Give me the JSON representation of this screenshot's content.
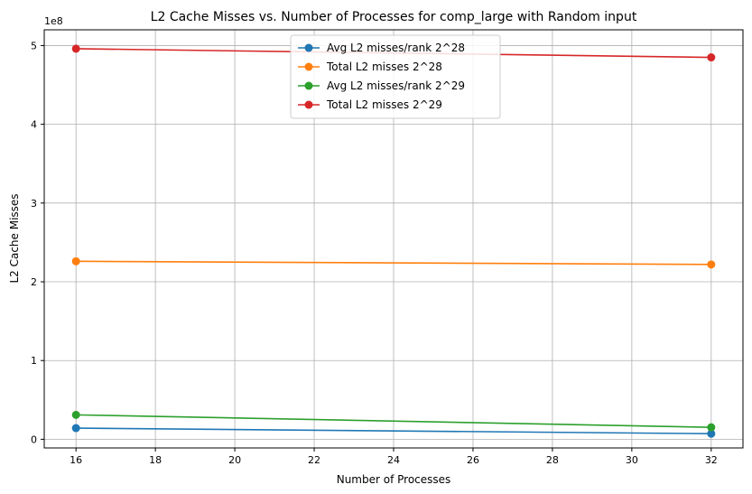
{
  "chart_data": {
    "type": "line",
    "title": "L2 Cache Misses vs. Number of Processes for comp_large with Random input",
    "xlabel": "Number of Processes",
    "ylabel": "L2 Cache Misses",
    "y_offset_label": "1e8",
    "x_ticks": [
      16,
      18,
      20,
      22,
      24,
      26,
      28,
      30,
      32
    ],
    "y_ticks": [
      0,
      1,
      2,
      3,
      4,
      5
    ],
    "y_tick_scale": 100000000,
    "xlim": [
      15.2,
      32.8
    ],
    "ylim": [
      -11000000,
      520000000
    ],
    "grid": true,
    "legend_position": "upper-center",
    "series": [
      {
        "name": "Avg L2 misses/rank 2^28",
        "color": "#1f77b4",
        "x": [
          16,
          32
        ],
        "y": [
          14200000,
          7100000
        ]
      },
      {
        "name": "Total L2 misses 2^28",
        "color": "#ff7f0e",
        "x": [
          16,
          32
        ],
        "y": [
          226000000,
          222000000
        ]
      },
      {
        "name": "Avg L2 misses/rank 2^29",
        "color": "#2ca02c",
        "x": [
          16,
          32
        ],
        "y": [
          31000000,
          15200000
        ]
      },
      {
        "name": "Total L2 misses 2^29",
        "color": "#d62728",
        "x": [
          16,
          32
        ],
        "y": [
          496000000,
          485000000
        ]
      }
    ]
  }
}
